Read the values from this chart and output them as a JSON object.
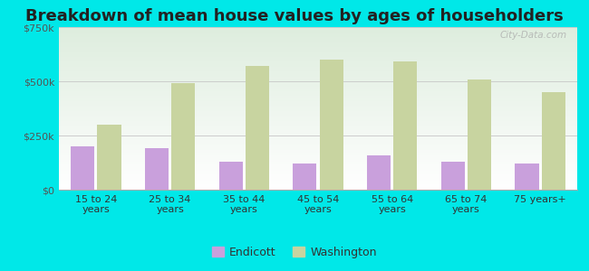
{
  "title": "Breakdown of mean house values by ages of householders",
  "categories": [
    "15 to 24\nyears",
    "25 to 34\nyears",
    "35 to 44\nyears",
    "45 to 54\nyears",
    "55 to 64\nyears",
    "65 to 74\nyears",
    "75 years+"
  ],
  "endicott_values": [
    200000,
    190000,
    130000,
    120000,
    160000,
    130000,
    120000
  ],
  "washington_values": [
    300000,
    490000,
    570000,
    600000,
    590000,
    510000,
    450000
  ],
  "endicott_color": "#c9a0dc",
  "washington_color": "#c8d4a0",
  "background_color": "#00e8e8",
  "ylim": [
    0,
    750000
  ],
  "yticks": [
    0,
    250000,
    500000,
    750000
  ],
  "ytick_labels": [
    "$0",
    "$250k",
    "$500k",
    "$750k"
  ],
  "title_fontsize": 13,
  "legend_labels": [
    "Endicott",
    "Washington"
  ],
  "watermark": "City-Data.com",
  "bar_width": 0.32,
  "bar_gap": 0.04
}
